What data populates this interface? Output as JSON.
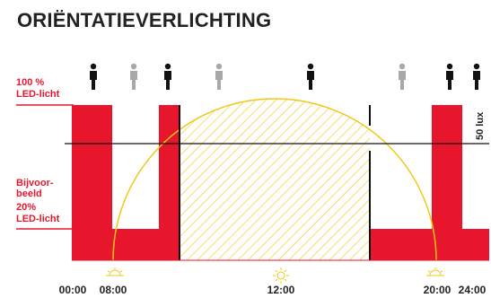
{
  "title": "ORIËNTATIEVERLICHTING",
  "labels": {
    "full_light_line1": "100 %",
    "full_light_line2": "LED-licht",
    "dim_line1": "Bijvoor-",
    "dim_line2": "beeld",
    "dim_line3": "20%",
    "dim_line4": "LED-licht",
    "lux": "50 lux"
  },
  "time_labels": [
    "00:00",
    "08:00",
    "12:00",
    "20:00",
    "24:00"
  ],
  "persons": [
    {
      "state": "present"
    },
    {
      "state": "absent"
    },
    {
      "state": "present"
    },
    {
      "state": "absent"
    },
    {
      "state": "present"
    },
    {
      "state": "absent"
    },
    {
      "state": "present"
    },
    {
      "state": "present"
    }
  ],
  "colors": {
    "light": "#e8162d",
    "daylight": "#f0c814",
    "present": "#111111",
    "absent": "#a8a8a8"
  }
}
